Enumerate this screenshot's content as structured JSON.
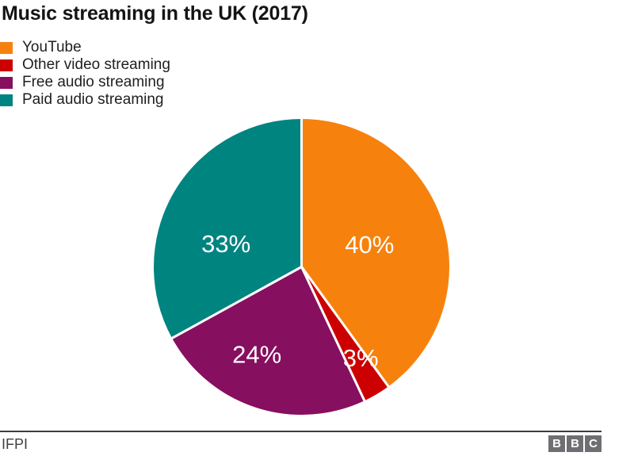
{
  "header": {
    "title": "Music streaming in the UK (2017)"
  },
  "chart_data": {
    "type": "pie",
    "title": "Music streaming in the UK (2017)",
    "start_angle_deg": 0,
    "direction": "clockwise",
    "legend_position": "top-left",
    "slice_label_color": "#ffffff",
    "slice_border_color": "#ffffff",
    "slices": [
      {
        "label": "YouTube",
        "value": 40,
        "pct_label": "40%",
        "color": "#f6820d",
        "label_angle": 72,
        "label_r": 0.48
      },
      {
        "label": "Other video streaming",
        "value": 3,
        "pct_label": "3%",
        "color": "#cc0000",
        "label_angle": 147,
        "label_r": 0.73
      },
      {
        "label": "Free audio streaming",
        "value": 24,
        "pct_label": "24%",
        "color": "#870f5f",
        "label_angle": 207,
        "label_r": 0.66
      },
      {
        "label": "Paid audio streaming",
        "value": 33,
        "pct_label": "33%",
        "color": "#008480",
        "label_angle": 287,
        "label_r": 0.53
      }
    ]
  },
  "footer": {
    "source": "IFPI",
    "logo_letters": [
      "B",
      "B",
      "C"
    ]
  }
}
